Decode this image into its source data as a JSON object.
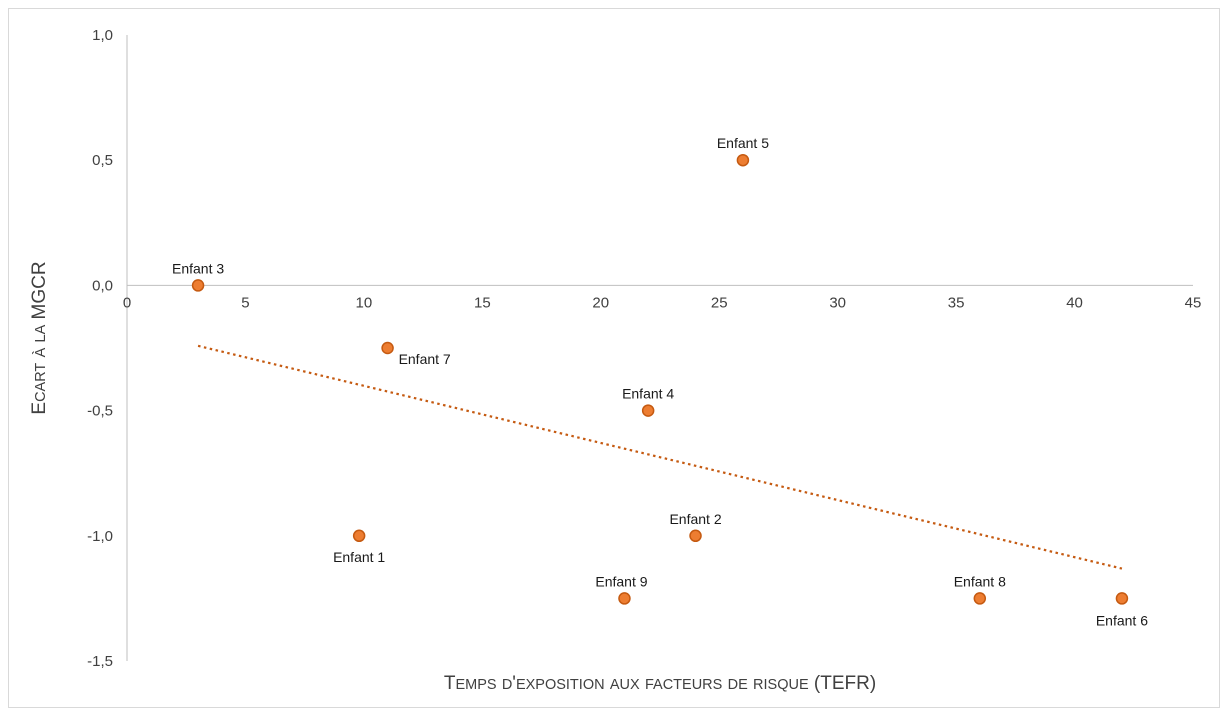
{
  "chart_data": {
    "type": "scatter",
    "title": "",
    "xlabel": "Temps d'exposition aux facteurs de risque (TEFR)",
    "ylabel": "Ecart à la MGCR",
    "xlim": [
      0,
      45
    ],
    "ylim": [
      -1.5,
      1.0
    ],
    "x_ticks": [
      "0",
      "5",
      "10",
      "15",
      "20",
      "25",
      "30",
      "35",
      "40",
      "45"
    ],
    "y_ticks": [
      "1,0",
      "0,5",
      "0,0",
      "-0,5",
      "-1,0",
      "-1,5"
    ],
    "grid": false,
    "legend": "none",
    "points": [
      {
        "label": "Enfant 1",
        "x": 9.8,
        "y": -1.0
      },
      {
        "label": "Enfant 2",
        "x": 24,
        "y": -1.0
      },
      {
        "label": "Enfant 3",
        "x": 3,
        "y": 0.0
      },
      {
        "label": "Enfant 4",
        "x": 22,
        "y": -0.5
      },
      {
        "label": "Enfant 5",
        "x": 26,
        "y": 0.5
      },
      {
        "label": "Enfant 6",
        "x": 42,
        "y": -1.25
      },
      {
        "label": "Enfant 7",
        "x": 11,
        "y": -0.25
      },
      {
        "label": "Enfant 8",
        "x": 36,
        "y": -1.25
      },
      {
        "label": "Enfant 9",
        "x": 21,
        "y": -1.25
      }
    ],
    "trendline": {
      "type": "linear",
      "style": "dotted",
      "x_start": 3,
      "x_end": 42
    },
    "colors": {
      "marker_fill": "#ed7d31",
      "marker_stroke": "#c55a11",
      "trendline": "#c55a11",
      "axis": "#bfbfbf"
    }
  }
}
